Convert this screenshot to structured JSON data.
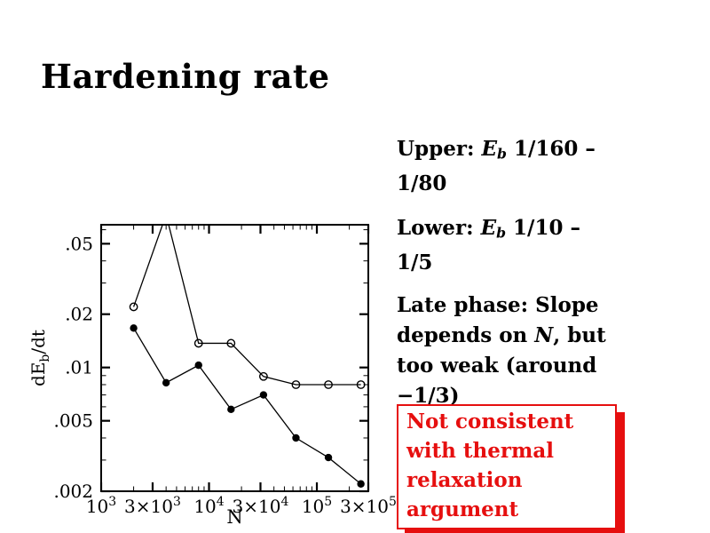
{
  "slide": {
    "title": "Hardening rate",
    "background_color": "#ffffff",
    "text_color": "#000000",
    "accent_red": "#e60f0f"
  },
  "notes": {
    "upper": {
      "lines": [
        [
          {
            "t": "Upper:  "
          },
          {
            "t": "E",
            "i": true
          },
          {
            "t": "b",
            "i": true,
            "sub": true
          },
          {
            "t": " 1/160 –"
          }
        ],
        [
          {
            "t": "1/80"
          }
        ]
      ]
    },
    "lower": {
      "lines": [
        [
          {
            "t": "Lower:  "
          },
          {
            "t": "E",
            "i": true
          },
          {
            "t": "b",
            "i": true,
            "sub": true
          },
          {
            "t": " 1/10 –"
          }
        ],
        [
          {
            "t": "1/5"
          }
        ]
      ]
    },
    "late": {
      "lines": [
        [
          {
            "t": "Late phase: Slope"
          }
        ],
        [
          {
            "t": "depends on "
          },
          {
            "t": "N",
            "i": true
          },
          {
            "t": ", but"
          }
        ],
        [
          {
            "t": "too weak (around"
          }
        ],
        [
          {
            "t": "−1/3)"
          }
        ]
      ]
    }
  },
  "callout": {
    "lines": [
      [
        {
          "t": "Not consistent"
        }
      ],
      [
        {
          "t": "with thermal"
        }
      ],
      [
        {
          "t": "relaxation"
        }
      ],
      [
        {
          "t": "argument"
        }
      ]
    ],
    "border_color": "#e60f0f",
    "text_color": "#e60f0f"
  },
  "chart_data": {
    "type": "line",
    "title": "",
    "xlabel": "N",
    "ylabel": "dEb/dt",
    "ylabel_parts": [
      {
        "t": "dE"
      },
      {
        "t": "b",
        "sub": true
      },
      {
        "t": "/dt"
      }
    ],
    "x_scale": "log",
    "y_scale": "log",
    "xlim": [
      1000,
      300000
    ],
    "ylim": [
      0.002,
      0.064
    ],
    "grid": false,
    "color": "#000000",
    "x_major_ticks": [
      {
        "v": 1000,
        "base": "10",
        "exp": "3"
      },
      {
        "v": 3000,
        "base": "3×10",
        "exp": "3"
      },
      {
        "v": 10000,
        "base": "10",
        "exp": "4"
      },
      {
        "v": 30000,
        "base": "3×10",
        "exp": "4"
      },
      {
        "v": 100000,
        "base": "10",
        "exp": "5"
      },
      {
        "v": 300000,
        "base": "3×10",
        "exp": "5"
      }
    ],
    "x_minor_ticks": [
      2000,
      4000,
      5000,
      6000,
      7000,
      8000,
      9000,
      20000,
      40000,
      50000,
      60000,
      70000,
      80000,
      90000,
      200000
    ],
    "y_major_ticks": [
      {
        "v": 0.05,
        "label": ".05"
      },
      {
        "v": 0.02,
        "label": ".02"
      },
      {
        "v": 0.01,
        "label": ".01"
      },
      {
        "v": 0.005,
        "label": ".005"
      },
      {
        "v": 0.002,
        "label": ".002"
      }
    ],
    "y_minor_ticks": [
      0.003,
      0.004,
      0.006,
      0.007,
      0.008,
      0.009,
      0.03,
      0.04,
      0.06
    ],
    "x": [
      2000,
      4000,
      8000,
      16000,
      32000,
      64000,
      128000,
      256000
    ],
    "series": [
      {
        "name": "upper (Eb 1/160 – 1/80)",
        "marker": "open-circle",
        "values": [
          0.022,
          0.073,
          0.0137,
          0.0137,
          0.0089,
          0.008,
          0.008,
          0.008
        ]
      },
      {
        "name": "lower (Eb 1/10 – 1/5)",
        "marker": "filled-circle",
        "values": [
          0.0167,
          0.0082,
          0.0103,
          0.0058,
          0.007,
          0.004,
          0.0031,
          0.0022
        ]
      }
    ]
  }
}
